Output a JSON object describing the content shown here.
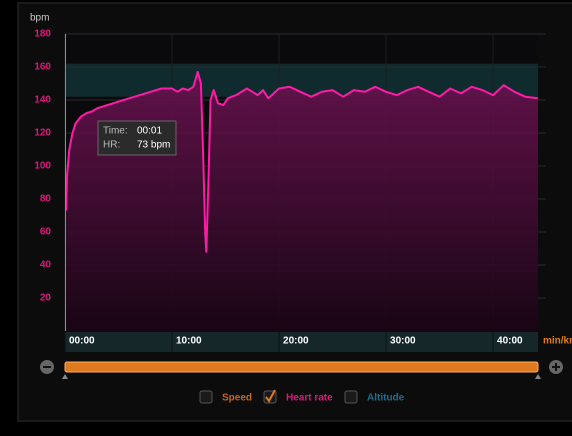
{
  "chart_data": {
    "type": "line",
    "y_label": "bpm",
    "x_unit": "min/km",
    "x": [
      0.1,
      0.2,
      0.4,
      0.7,
      1,
      1.5,
      2,
      2.5,
      3,
      4,
      5,
      6,
      7,
      8,
      9,
      10,
      10.5,
      11,
      11.5,
      12,
      12.4,
      12.7,
      12.9,
      13.1,
      13.2,
      13.4,
      13.6,
      13.9,
      14.3,
      14.8,
      15.2,
      16,
      17,
      18,
      18.5,
      19,
      20,
      21,
      22,
      23,
      24,
      25,
      26,
      27,
      28,
      29,
      30,
      31,
      32,
      33,
      34,
      35,
      36,
      37,
      38,
      39,
      40,
      41,
      42,
      43,
      44.2
    ],
    "series": [
      {
        "name": "Heart rate",
        "color": "#ff1aa8",
        "values": [
          73,
          95,
          110,
          120,
          126,
          130,
          132,
          133,
          135,
          137,
          139,
          141,
          143,
          145,
          147,
          147,
          145,
          147,
          146,
          148,
          157,
          150,
          110,
          60,
          48,
          90,
          140,
          146,
          138,
          137,
          141,
          143,
          147,
          143,
          146,
          141,
          147,
          148,
          145,
          142,
          145,
          146,
          142,
          146,
          145,
          148,
          145,
          143,
          146,
          148,
          145,
          142,
          147,
          144,
          148,
          146,
          143,
          149,
          145,
          142,
          141
        ]
      }
    ],
    "xlim": [
      0,
      44.2
    ],
    "xticks": [
      {
        "value": 0,
        "label": "00:00"
      },
      {
        "value": 10,
        "label": "10:00"
      },
      {
        "value": 20,
        "label": "20:00"
      },
      {
        "value": 30,
        "label": "30:00"
      },
      {
        "value": 40,
        "label": "40:00"
      }
    ],
    "ylim": [
      0,
      180
    ],
    "yticks": [
      20,
      40,
      60,
      80,
      100,
      120,
      140,
      160,
      180
    ],
    "grid": true,
    "target_zone": [
      142,
      162
    ],
    "tooltip": {
      "time_label": "Time:",
      "time": "00:01",
      "hr_label": "HR:",
      "hr": "73 bpm"
    },
    "legend": [
      {
        "label": "Speed",
        "color": "#c8651e",
        "checked": false
      },
      {
        "label": "Heart rate",
        "color": "#e0147f",
        "checked": true
      },
      {
        "label": "Altitude",
        "color": "#1f6c8c",
        "checked": false
      }
    ]
  }
}
